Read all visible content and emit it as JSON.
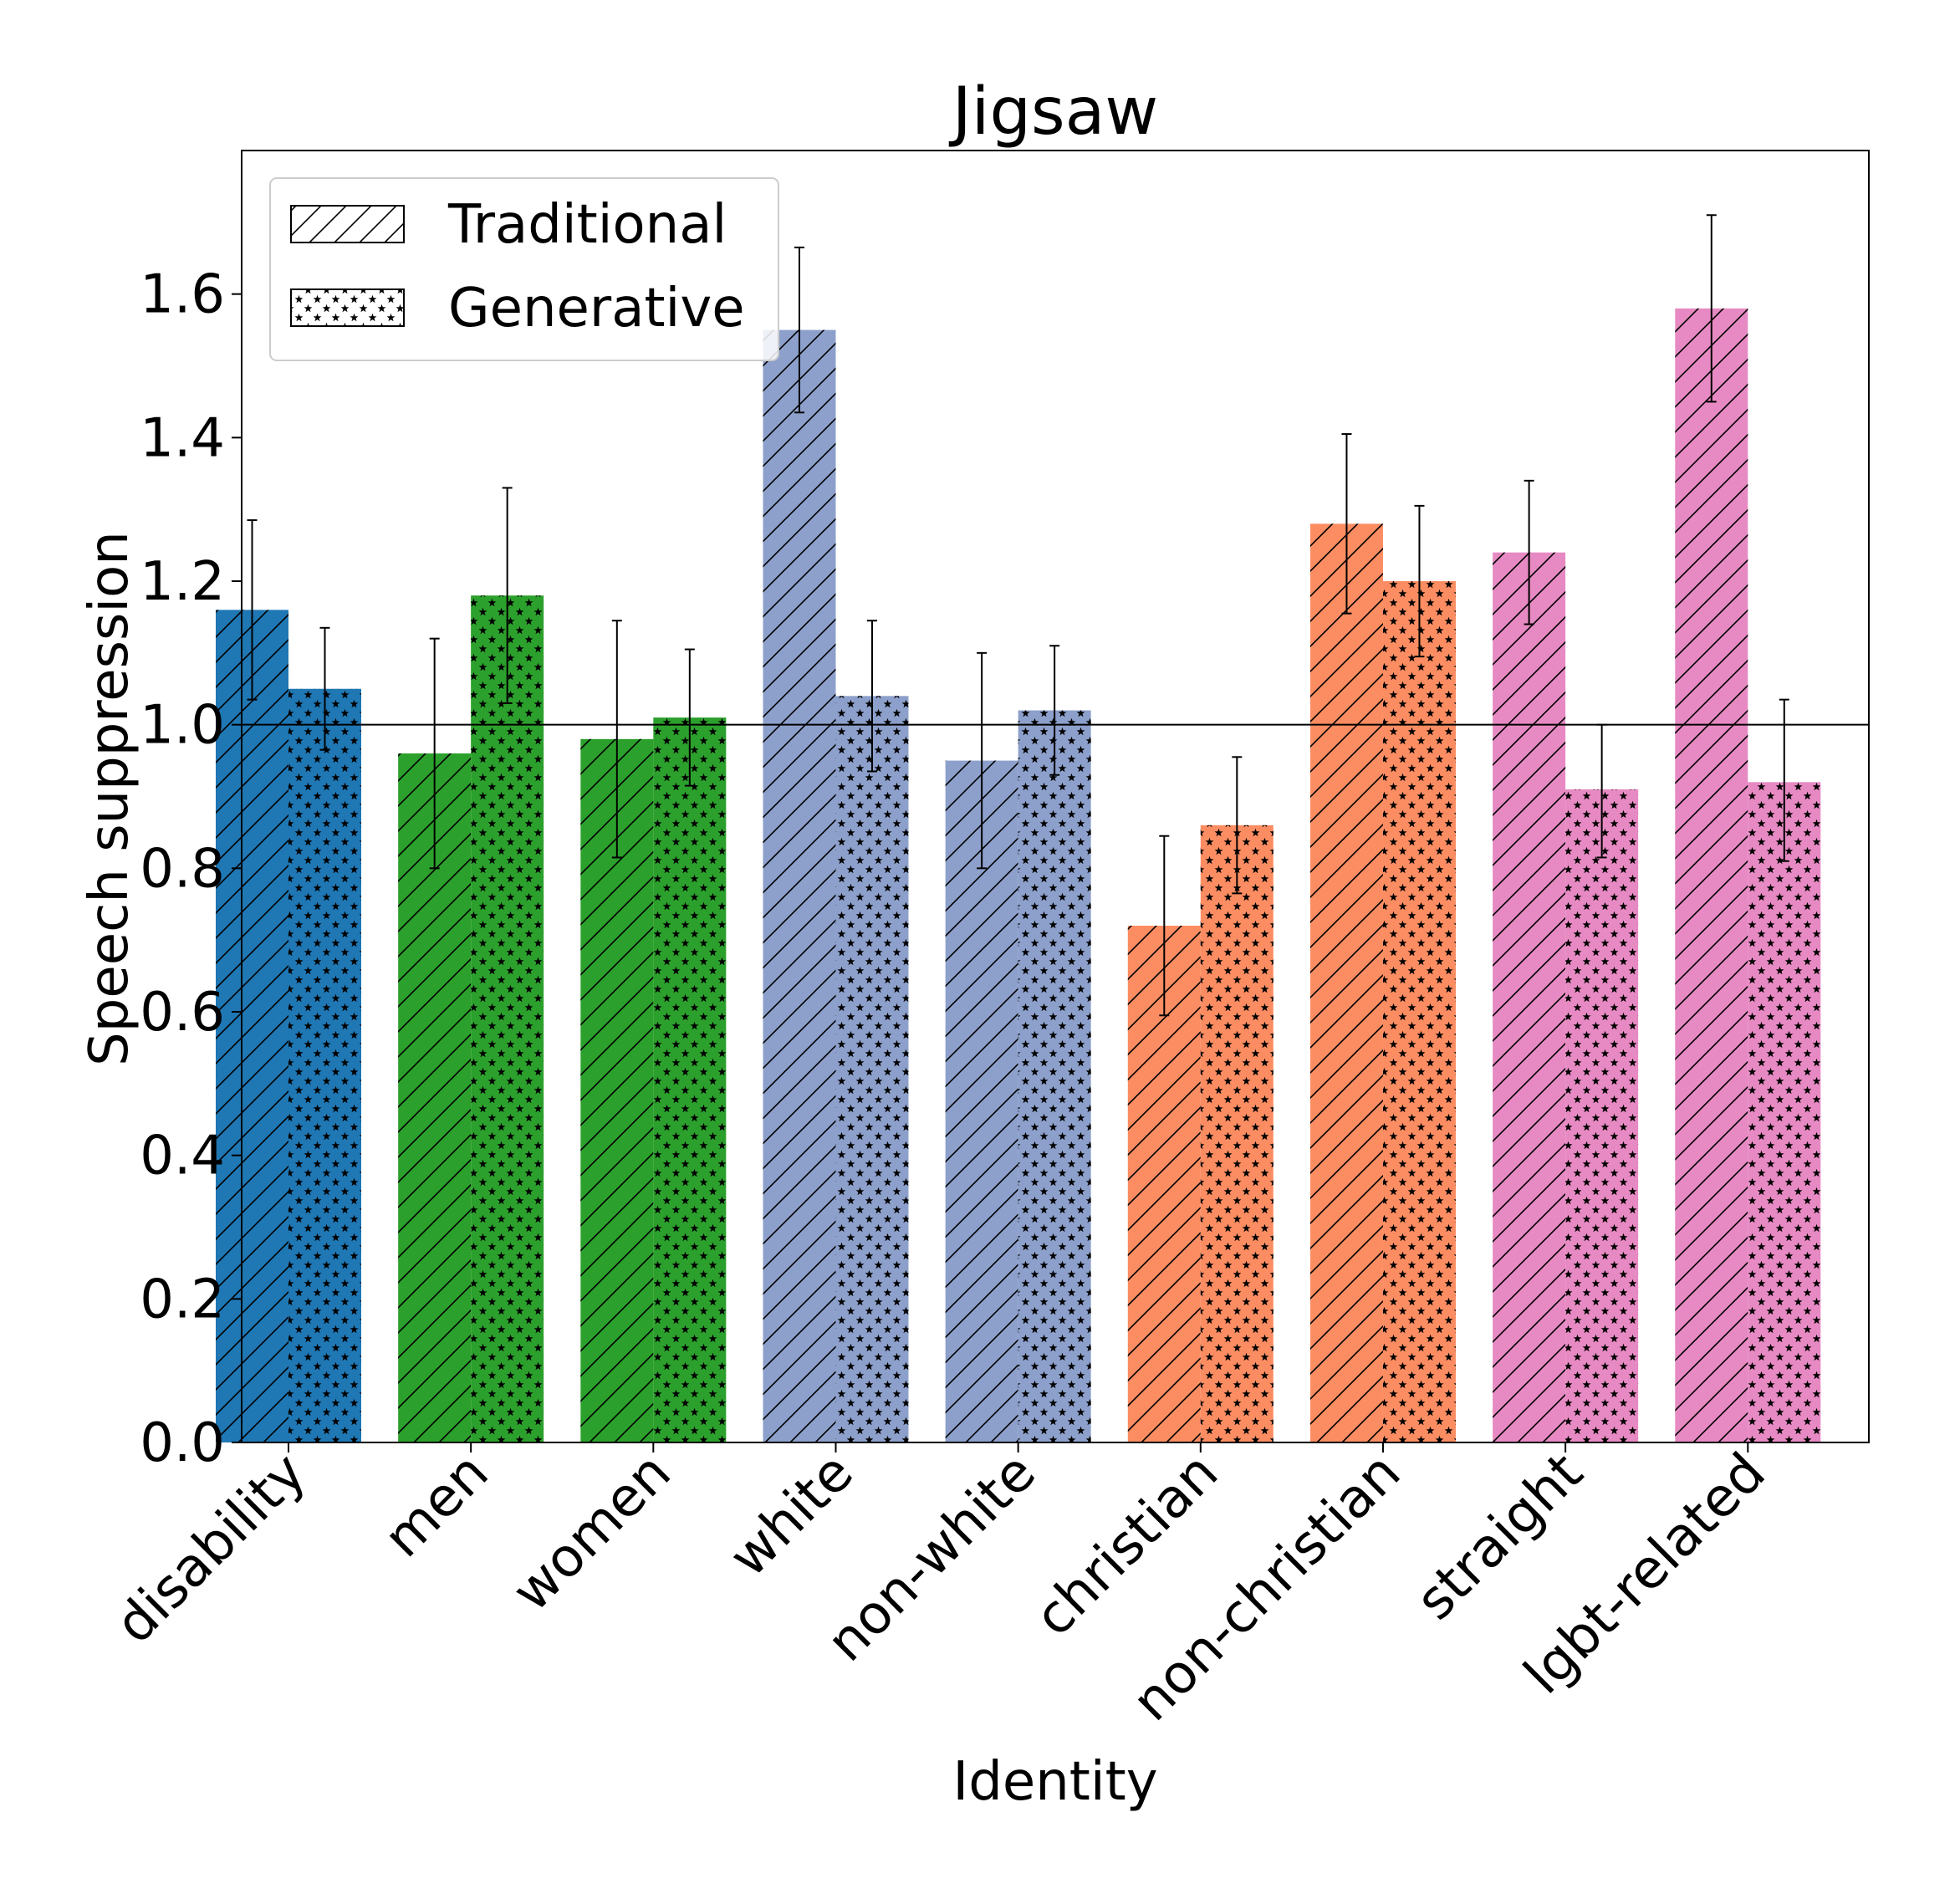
{
  "chart_data": {
    "type": "bar",
    "title": "Jigsaw",
    "xlabel": "Identity",
    "ylabel": "Speech suppression",
    "ylim": [
      0,
      1.8
    ],
    "yticks": [
      "0.0",
      "0.2",
      "0.4",
      "0.6",
      "0.8",
      "1.0",
      "1.2",
      "1.4",
      "1.6"
    ],
    "grid": false,
    "reference_line": 1.0,
    "legend": {
      "placement": "top-left",
      "entries": [
        "Traditional",
        "Generative"
      ]
    },
    "categories": [
      "disability",
      "men",
      "women",
      "white",
      "non-white",
      "christian",
      "non-christian",
      "straight",
      "lgbt-related"
    ],
    "colors": [
      "#1f77b4",
      "#2ca02c",
      "#2ca02c",
      "#8da0cb",
      "#8da0cb",
      "#fc8d62",
      "#fc8d62",
      "#e78ac3",
      "#e78ac3"
    ],
    "series": [
      {
        "name": "Traditional",
        "pattern": "diagonal-hatch",
        "values": [
          1.16,
          0.96,
          0.98,
          1.55,
          0.95,
          0.72,
          1.28,
          1.24,
          1.58
        ],
        "error_low": [
          1.035,
          0.8,
          0.815,
          1.435,
          0.8,
          0.595,
          1.155,
          1.14,
          1.45
        ],
        "error_high": [
          1.285,
          1.12,
          1.145,
          1.665,
          1.1,
          0.845,
          1.405,
          1.34,
          1.71
        ]
      },
      {
        "name": "Generative",
        "pattern": "star-hatch",
        "values": [
          1.05,
          1.18,
          1.01,
          1.04,
          1.02,
          0.86,
          1.2,
          0.91,
          0.92
        ],
        "error_low": [
          0.965,
          1.03,
          0.915,
          0.935,
          0.93,
          0.765,
          1.095,
          0.815,
          0.81
        ],
        "error_high": [
          1.135,
          1.33,
          1.105,
          1.145,
          1.11,
          0.955,
          1.305,
          1.0,
          1.035
        ]
      }
    ]
  }
}
